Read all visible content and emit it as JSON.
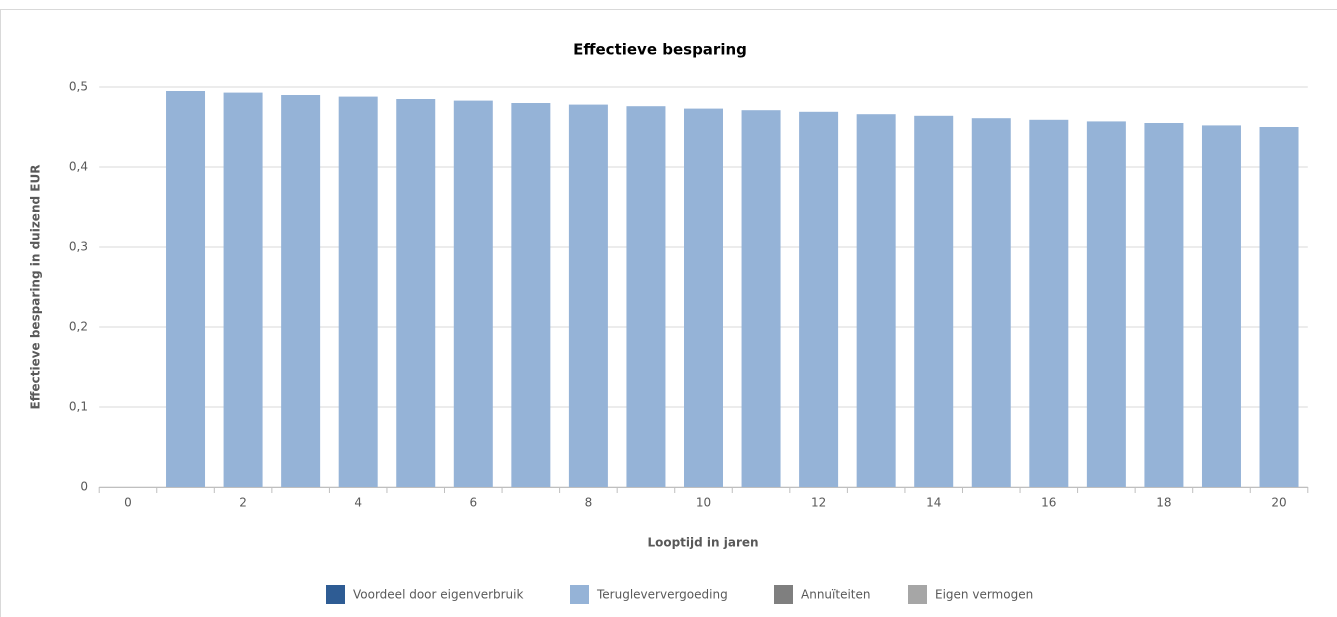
{
  "chart_data": {
    "type": "stacked-bar",
    "title": "Effectieve besparing",
    "x_label": "Looptijd in jaren",
    "y_label": "Effectieve besparing in duizend EUR",
    "categories": [
      "0",
      null,
      "2",
      null,
      "4",
      null,
      "6",
      null,
      "8",
      null,
      "10",
      null,
      "12",
      null,
      "14",
      null,
      "16",
      null,
      "18",
      null,
      "20"
    ],
    "series": [
      {
        "name": "Voordeel door eigenverbruik",
        "color": "#2e5c94",
        "values": [
          0,
          0,
          0,
          0,
          0,
          0,
          0,
          0,
          0,
          0,
          0,
          0,
          0,
          0,
          0,
          0,
          0,
          0,
          0,
          0,
          0
        ]
      },
      {
        "name": "Terugleververgoeding",
        "color": "#95b3d7",
        "values": [
          0,
          0.495,
          0.493,
          0.49,
          0.488,
          0.485,
          0.483,
          0.48,
          0.478,
          0.476,
          0.473,
          0.471,
          0.469,
          0.466,
          0.464,
          0.461,
          0.459,
          0.457,
          0.455,
          0.452,
          0.45
        ]
      },
      {
        "name": "Annuïteiten",
        "color": "#7f7f7f",
        "values": [
          0,
          0,
          0,
          0,
          0,
          0,
          0,
          0,
          0,
          0,
          0,
          0,
          0,
          0,
          0,
          0,
          0,
          0,
          0,
          0,
          0
        ]
      },
      {
        "name": "Eigen vermogen",
        "color": "#a6a6a6",
        "values": [
          0,
          0,
          0,
          0,
          0,
          0,
          0,
          0,
          0,
          0,
          0,
          0,
          0,
          0,
          0,
          0,
          0,
          0,
          0,
          0,
          0
        ]
      }
    ],
    "ylim": [
      0,
      0.5
    ],
    "yticks": [
      0,
      {
        "value": 0.1,
        "label": "0,1"
      },
      {
        "value": 0.2,
        "label": "0,2"
      },
      {
        "value": 0.3,
        "label": "0,3"
      },
      {
        "value": 0.4,
        "label": "0,4"
      },
      {
        "value": 0.5,
        "label": "0,5"
      }
    ],
    "grid": true
  }
}
